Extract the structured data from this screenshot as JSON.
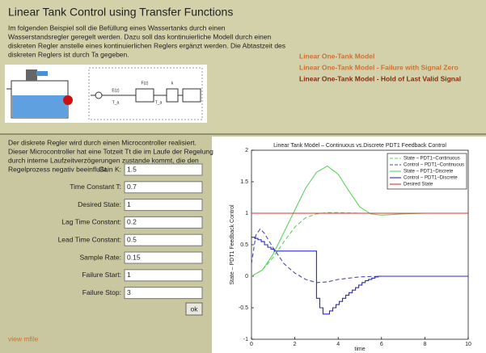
{
  "header": {
    "title": "Linear Tank Control using Transfer Functions",
    "intro": [
      "Im folgenden Beispiel soll die Befüllung eines Wassertanks durch einen",
      "Wasserstandsregler geregelt werden. Dazu soll das kontinuierliche Modell durch einen",
      "diskreten Regler anstelle eines kontinuierlichen Reglers ergänzt werden. Die Abtastzeit des",
      "diskreten Reglers ist durch Ta gegeben."
    ]
  },
  "links": [
    "Linear One-Tank Model",
    "Linear One-Tank Model - Failure with Signal Zero",
    "Linear One-Tank Model - Hold of Last Valid Signal"
  ],
  "diagram": {
    "labels": [
      "E(z)",
      "F(z)",
      "k",
      "T_a",
      "T_a"
    ]
  },
  "panel": {
    "text": [
      "Der diskrete Regler wird durch einen Microcontroller realisiert.",
      "Dieser Microcontroller hat eine Totzeit Tt die im Laufe der Regelung",
      "durch interne Laufzeitverzögerungen zustande kommt, die den",
      "Regelprozess negativ beeinflußt."
    ],
    "fields": [
      {
        "label": "Gain K:",
        "value": "1.5"
      },
      {
        "label": "Time Constant T:",
        "value": "0.7"
      },
      {
        "label": "Desired State:",
        "value": "1"
      },
      {
        "label": "Lag Time Constant:",
        "value": "0.2"
      },
      {
        "label": "Lead Time Constant:",
        "value": "0.5"
      },
      {
        "label": "Sample Rate:",
        "value": "0.15"
      },
      {
        "label": "Failure Start:",
        "value": "1"
      },
      {
        "label": "Failure Stop:",
        "value": "3"
      }
    ],
    "button": "ok",
    "mfile": "view mfile"
  },
  "chart_data": {
    "type": "line",
    "title": "Linear Tank Model – Continuous vs.Discrete PDT1 Feedback Control",
    "x_label": "time",
    "y_label": "State – PDT1 Feedback Control",
    "xlim": [
      0,
      10
    ],
    "xticks": [
      0,
      2,
      4,
      6,
      8,
      10
    ],
    "ylim": [
      -1,
      2
    ],
    "yticks": [
      -1,
      -0.5,
      0,
      0.5,
      1,
      1.5,
      2
    ],
    "legend": "upper right",
    "series": [
      {
        "name": "State – PDT1–Continuous",
        "color": "#5fd35f",
        "dash": true,
        "x": [
          0,
          0.5,
          1,
          1.5,
          2,
          2.5,
          3,
          3.5,
          4,
          5,
          6,
          7,
          8.5
        ],
        "values": [
          0,
          0.1,
          0.3,
          0.55,
          0.78,
          0.93,
          0.99,
          1.01,
          1.01,
          1,
          1,
          1,
          1
        ]
      },
      {
        "name": "Control – PDT1–Continuous",
        "color": "#4a4ab8",
        "dash": true,
        "x": [
          0,
          0.2,
          0.4,
          0.6,
          1,
          1.5,
          2,
          2.5,
          3,
          3.5,
          4,
          5,
          6,
          8,
          10
        ],
        "values": [
          0.2,
          0.65,
          0.75,
          0.68,
          0.45,
          0.2,
          0.05,
          -0.05,
          -0.1,
          -0.09,
          -0.05,
          -0.01,
          0,
          0,
          0
        ]
      },
      {
        "name": "State – PDT1–Discrete",
        "color": "#5fd35f",
        "dash": false,
        "x": [
          0,
          0.5,
          1,
          1.5,
          2,
          2.5,
          3,
          3.5,
          4,
          4.5,
          5,
          5.5,
          6,
          6.5,
          7,
          8,
          8.5
        ],
        "values": [
          0,
          0.1,
          0.35,
          0.7,
          1.05,
          1.4,
          1.65,
          1.75,
          1.62,
          1.35,
          1.1,
          0.99,
          0.97,
          0.98,
          0.99,
          1,
          1
        ]
      },
      {
        "name": "Control – PDT1–Discrete",
        "color": "#2828c8",
        "dash": false,
        "steps": true,
        "x": [
          0,
          0.15,
          0.3,
          0.45,
          0.6,
          0.75,
          0.9,
          1.05,
          3,
          3.15,
          3.3,
          3.45,
          3.6,
          3.75,
          3.9,
          4.05,
          4.2,
          4.35,
          4.5,
          4.65,
          4.8,
          4.95,
          5.1,
          5.25,
          5.4,
          5.55,
          5.7,
          5.85,
          10
        ],
        "values": [
          0.62,
          0.6,
          0.58,
          0.55,
          0.5,
          0.46,
          0.43,
          0.4,
          -0.35,
          -0.5,
          -0.6,
          -0.6,
          -0.55,
          -0.5,
          -0.45,
          -0.4,
          -0.35,
          -0.3,
          -0.26,
          -0.22,
          -0.18,
          -0.14,
          -0.1,
          -0.07,
          -0.05,
          -0.03,
          -0.01,
          0,
          0
        ]
      },
      {
        "name": "Desired State",
        "color": "#e03030",
        "dash": false,
        "x": [
          0,
          10
        ],
        "values": [
          1,
          1
        ]
      }
    ]
  }
}
